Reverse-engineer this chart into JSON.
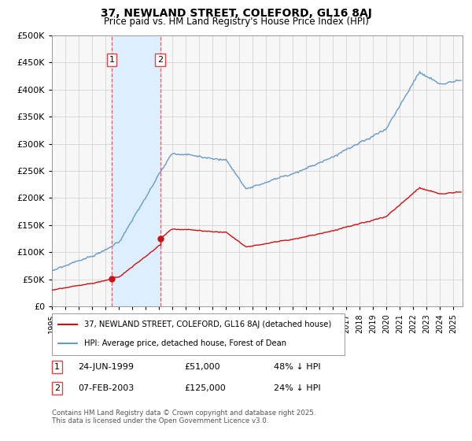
{
  "title": "37, NEWLAND STREET, COLEFORD, GL16 8AJ",
  "subtitle": "Price paid vs. HM Land Registry's House Price Index (HPI)",
  "legend_entry1": "37, NEWLAND STREET, COLEFORD, GL16 8AJ (detached house)",
  "legend_entry2": "HPI: Average price, detached house, Forest of Dean",
  "transaction1_date": "24-JUN-1999",
  "transaction1_price": "£51,000",
  "transaction1_pct": "48% ↓ HPI",
  "transaction2_date": "07-FEB-2003",
  "transaction2_price": "£125,000",
  "transaction2_pct": "24% ↓ HPI",
  "footer": "Contains HM Land Registry data © Crown copyright and database right 2025.\nThis data is licensed under the Open Government Licence v3.0.",
  "hpi_color": "#6699cc",
  "price_color": "#cc1111",
  "vspan_color": "#ddeeff",
  "vline_color": "#dd4444",
  "yticks": [
    0,
    50000,
    100000,
    150000,
    200000,
    250000,
    300000,
    350000,
    400000,
    450000,
    500000
  ],
  "t1_year": 1999.46,
  "t2_year": 2003.09,
  "price1": 51000,
  "price2": 125000
}
